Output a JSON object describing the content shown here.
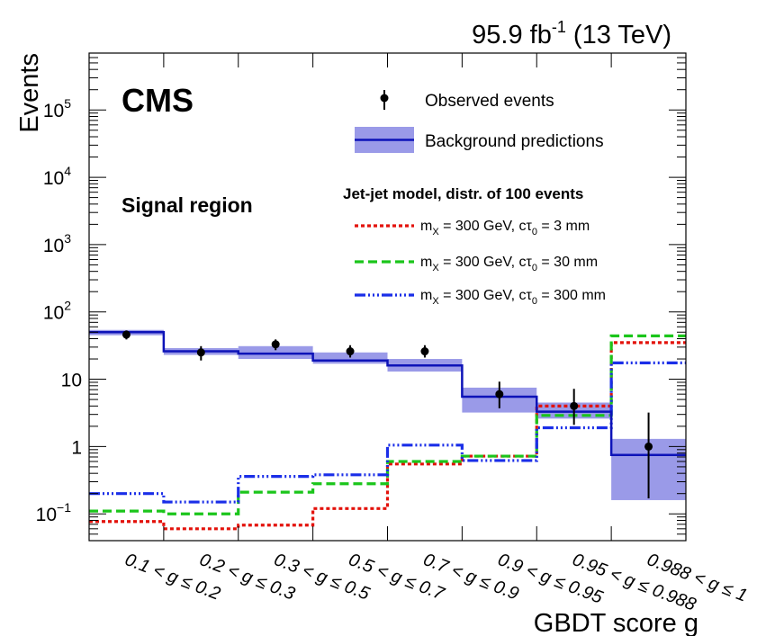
{
  "header": {
    "lumi": "95.9 fb",
    "lumi_exp": "-1",
    "energy": " (13 TeV)"
  },
  "labels": {
    "cms": "CMS",
    "region": "Signal region",
    "ylabel": "Events",
    "xlabel": "GBDT score g"
  },
  "legend": {
    "observed": "Observed events",
    "background": "Background predictions",
    "model_title": "Jet-jet model, distr. of 100 events",
    "signals": [
      {
        "m": "m",
        "m_sub": "X",
        "mass_text": " = 300 GeV, c",
        "tau": "τ",
        "tau_sub": "0",
        "ctau_text": " = 3 mm"
      },
      {
        "m": "m",
        "m_sub": "X",
        "mass_text": " = 300 GeV, c",
        "tau": "τ",
        "tau_sub": "0",
        "ctau_text": " = 30 mm"
      },
      {
        "m": "m",
        "m_sub": "X",
        "mass_text": " = 300 GeV, c",
        "tau": "τ",
        "tau_sub": "0",
        "ctau_text": " = 300 mm"
      }
    ]
  },
  "chart_data": {
    "type": "histogram",
    "yscale": "log",
    "ylim": [
      0.04,
      700000
    ],
    "y_ticks": [
      {
        "v": 0.1,
        "base": "10",
        "exp": "−1"
      },
      {
        "v": 1,
        "base": "1",
        "exp": ""
      },
      {
        "v": 10,
        "base": "10",
        "exp": ""
      },
      {
        "v": 100,
        "base": "10",
        "exp": "2"
      },
      {
        "v": 1000,
        "base": "10",
        "exp": "3"
      },
      {
        "v": 10000,
        "base": "10",
        "exp": "4"
      },
      {
        "v": 100000,
        "base": "10",
        "exp": "5"
      }
    ],
    "categories": [
      "0.1 < g ≤ 0.2",
      "0.2 < g ≤ 0.3",
      "0.3 < g ≤ 0.5",
      "0.5 < g ≤ 0.7",
      "0.7 < g ≤ 0.9",
      "0.9 < g ≤ 0.95",
      "0.95 < g ≤ 0.988",
      "0.988 < g ≤ 1"
    ],
    "observed": {
      "values": [
        46,
        25,
        33,
        26,
        26,
        6,
        4,
        1
      ],
      "err_low": [
        39,
        19,
        27,
        21,
        21,
        3.7,
        2.1,
        0.17
      ],
      "err_high": [
        53,
        31,
        39,
        32,
        32,
        9.2,
        7.2,
        3.2
      ]
    },
    "background": {
      "values": [
        50,
        26,
        24,
        19,
        16,
        5.5,
        3.3,
        0.75
      ],
      "unc_low": [
        45,
        23,
        20,
        17,
        13,
        3.2,
        2.6,
        0.16
      ],
      "unc_high": [
        54,
        29,
        31,
        25,
        20,
        7.5,
        4.5,
        1.3
      ],
      "color": "#0d13b8",
      "band_color": "#9a9ae8"
    },
    "signals": [
      {
        "values": [
          0.077,
          0.06,
          0.068,
          0.12,
          0.55,
          0.72,
          4.0,
          35
        ],
        "color": "#e3120b",
        "dash": "4 3"
      },
      {
        "values": [
          0.11,
          0.1,
          0.21,
          0.28,
          0.6,
          0.72,
          2.9,
          44
        ],
        "color": "#1bc51b",
        "dash": "10 5"
      },
      {
        "values": [
          0.2,
          0.15,
          0.36,
          0.38,
          1.05,
          0.62,
          1.9,
          17.5
        ],
        "color": "#1a2ee8",
        "dash": "12 3 2 3 2 3 2 3"
      }
    ]
  }
}
